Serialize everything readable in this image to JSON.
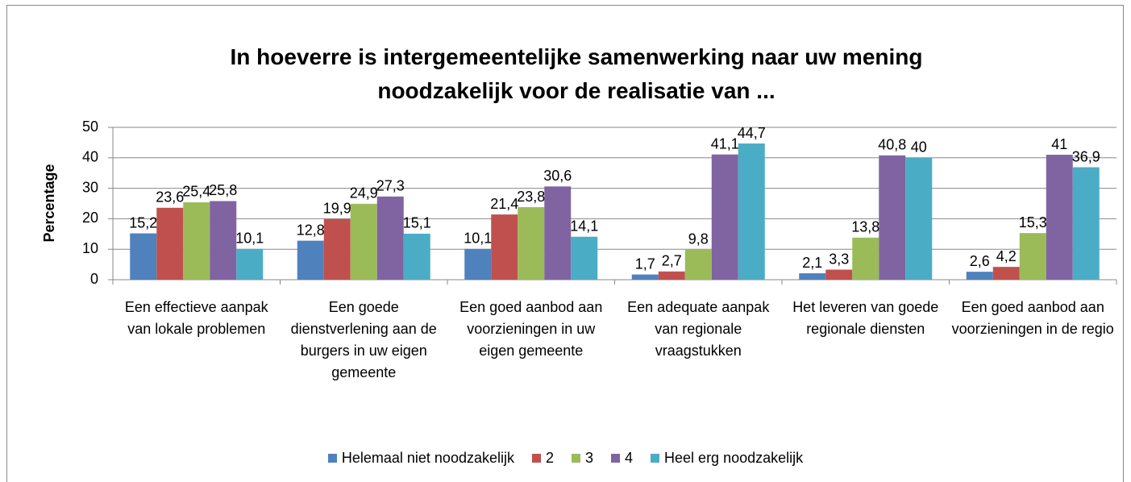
{
  "chart_data": {
    "type": "bar",
    "title": "In hoeverre is intergemeentelijke samenwerking naar uw mening noodzakelijk voor de realisatie van  ...",
    "ylabel": "Percentage",
    "categories": [
      "Een effectieve aanpak van lokale problemen",
      "Een goede dienstverlening aan de burgers in uw eigen gemeente",
      "Een goed aanbod aan voorzieningen in uw eigen gemeente",
      "Een adequate aanpak van regionale vraagstukken",
      "Het leveren van goede regionale diensten",
      "Een goed aanbod aan voorzieningen in de regio"
    ],
    "series": [
      {
        "name": "Helemaal niet noodzakelijk",
        "color": "#4f81bd",
        "values": [
          15.2,
          12.8,
          10.1,
          1.7,
          2.1,
          2.6
        ],
        "value_labels": [
          "15,2",
          "12,8",
          "10,1",
          "1,7",
          "2,1",
          "2,6"
        ]
      },
      {
        "name": "2",
        "color": "#c0504d",
        "values": [
          23.6,
          19.9,
          21.4,
          2.7,
          3.3,
          4.2
        ],
        "value_labels": [
          "23,6",
          "19,9",
          "21,4",
          "2,7",
          "3,3",
          "4,2"
        ]
      },
      {
        "name": "3",
        "color": "#9bbb59",
        "values": [
          25.4,
          24.9,
          23.8,
          9.8,
          13.8,
          15.3
        ],
        "value_labels": [
          "25,4",
          "24,9",
          "23,8",
          "9,8",
          "13,8",
          "15,3"
        ]
      },
      {
        "name": "4",
        "color": "#8064a2",
        "values": [
          25.8,
          27.3,
          30.6,
          41.1,
          40.8,
          41
        ],
        "value_labels": [
          "25,8",
          "27,3",
          "30,6",
          "41,1",
          "40,8",
          "41"
        ]
      },
      {
        "name": "Heel erg noodzakelijk",
        "color": "#4bacc6",
        "values": [
          10.1,
          15.1,
          14.1,
          44.7,
          40,
          36.9
        ],
        "value_labels": [
          "10,1",
          "15,1",
          "14,1",
          "44,7",
          "40",
          "36,9"
        ]
      }
    ],
    "ylim": [
      0,
      50
    ],
    "yticks": [
      0,
      10,
      20,
      30,
      40,
      50
    ],
    "grid": true,
    "legend": "bottom"
  }
}
